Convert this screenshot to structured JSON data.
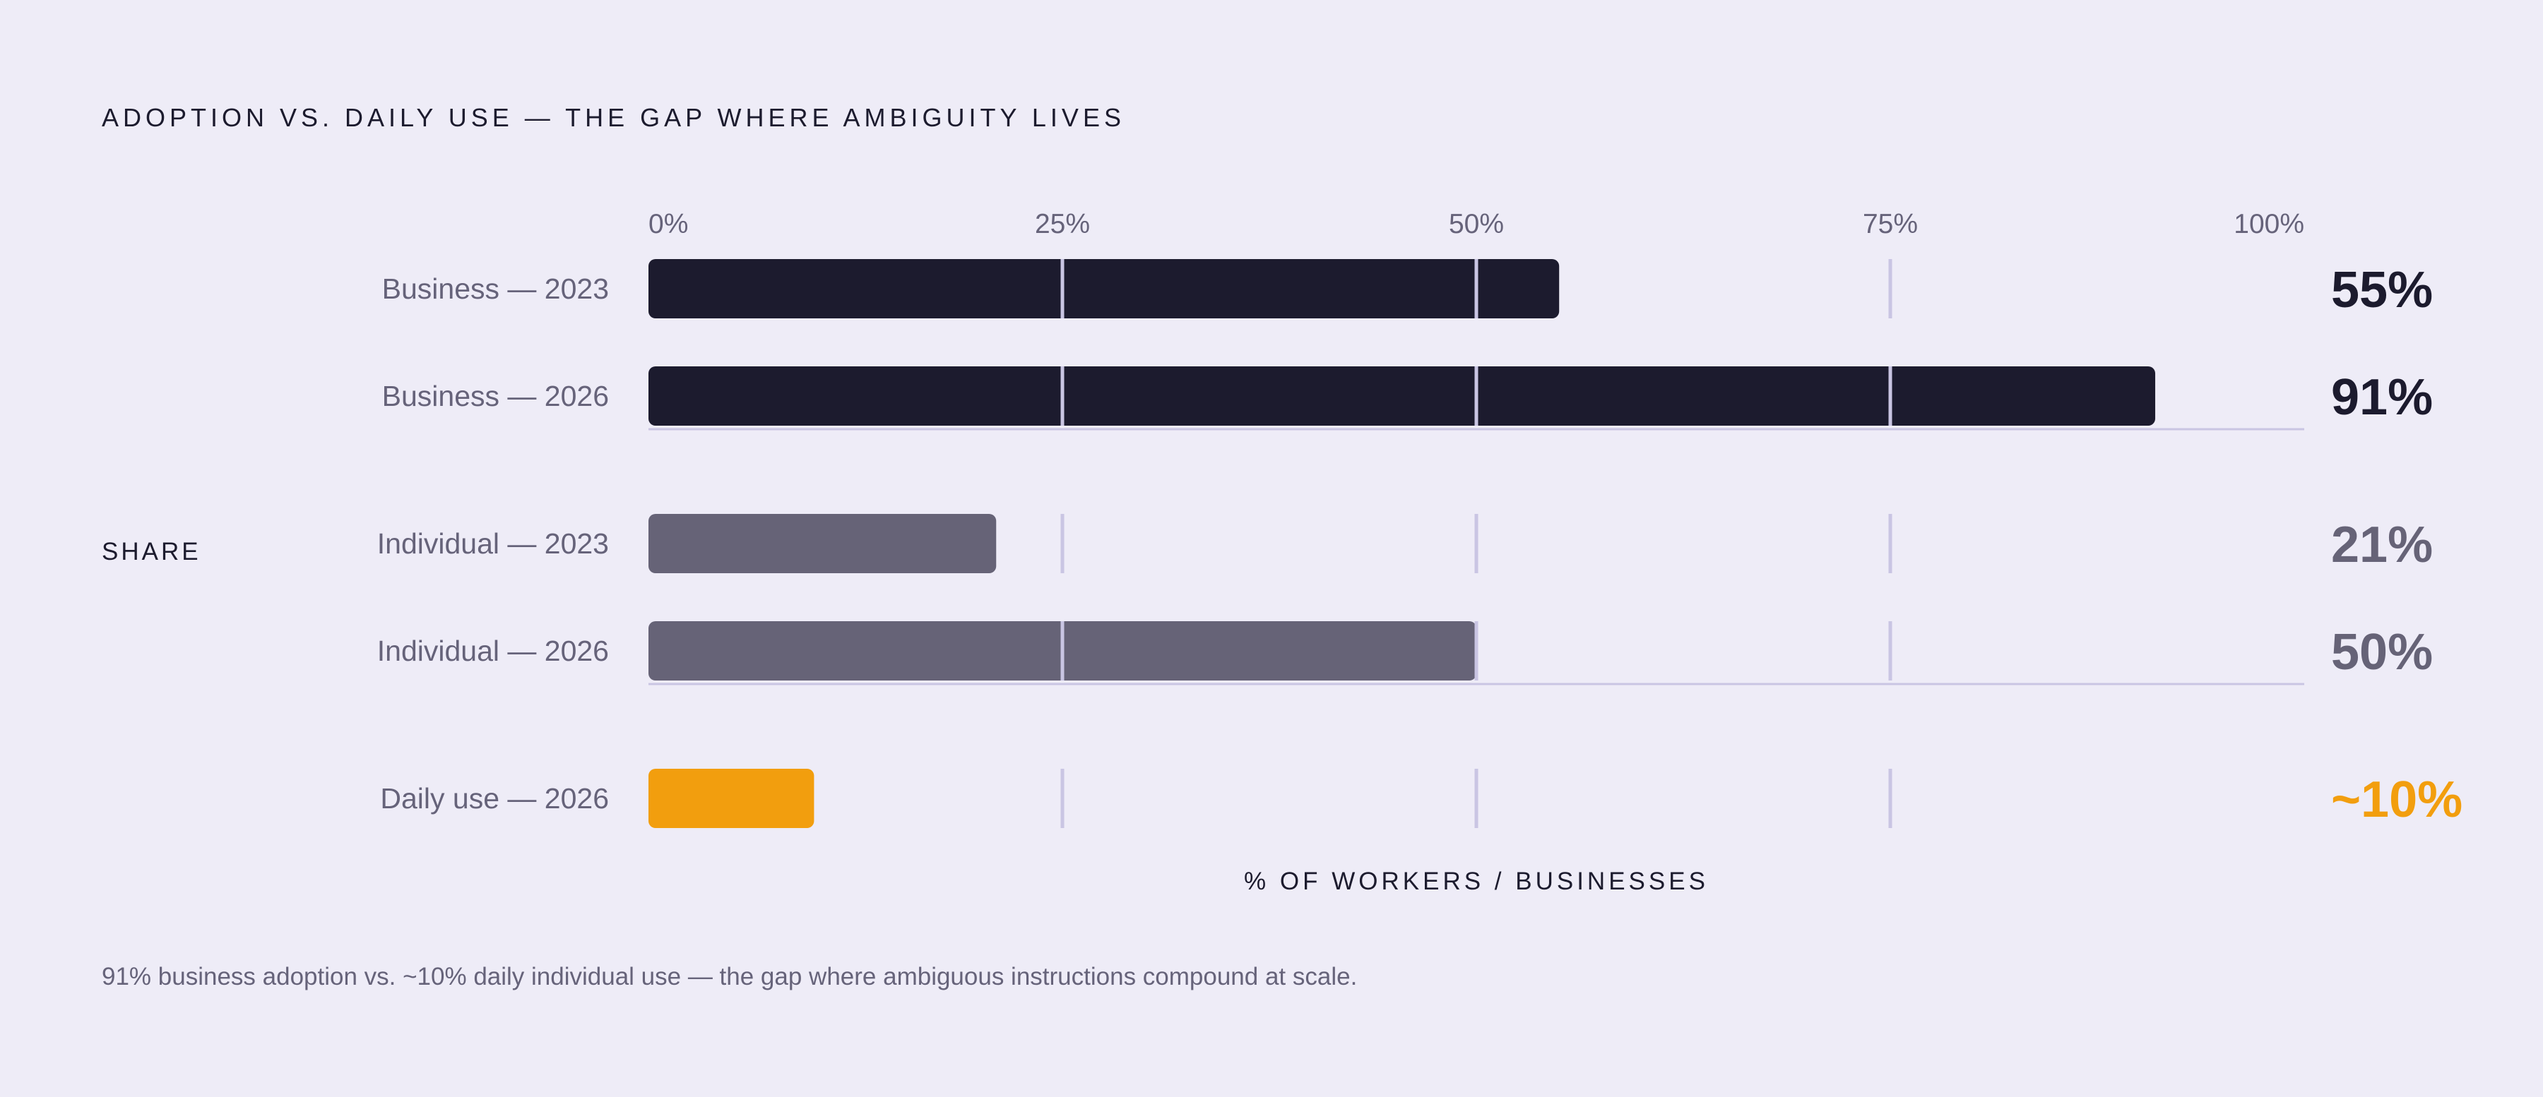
{
  "chart_data": {
    "type": "bar",
    "orientation": "horizontal",
    "title": "ADOPTION VS. DAILY USE — THE GAP WHERE AMBIGUITY LIVES",
    "ylabel": "SHARE",
    "xlabel": "% OF WORKERS / BUSINESSES",
    "xlim": [
      0,
      100
    ],
    "ticks": [
      "0%",
      "25%",
      "50%",
      "75%",
      "100%"
    ],
    "tick_values": [
      0,
      25,
      50,
      75,
      100
    ],
    "grid": true,
    "groups": [
      {
        "color": "#1c1b2e",
        "bars": [
          {
            "category": "Business — 2023",
            "value": 55,
            "value_label": "55%"
          },
          {
            "category": "Business — 2026",
            "value": 91,
            "value_label": "91%"
          }
        ]
      },
      {
        "color": "#666377",
        "bars": [
          {
            "category": "Individual — 2023",
            "value": 21,
            "value_label": "21%"
          },
          {
            "category": "Individual — 2026",
            "value": 50,
            "value_label": "50%"
          }
        ]
      },
      {
        "color": "#f29e0e",
        "bars": [
          {
            "category": "Daily use — 2026",
            "value": 10,
            "value_label": "~10%"
          }
        ]
      }
    ],
    "caption": "91% business adoption vs. ~10% daily individual use — the gap where ambiguous instructions compound at scale."
  }
}
